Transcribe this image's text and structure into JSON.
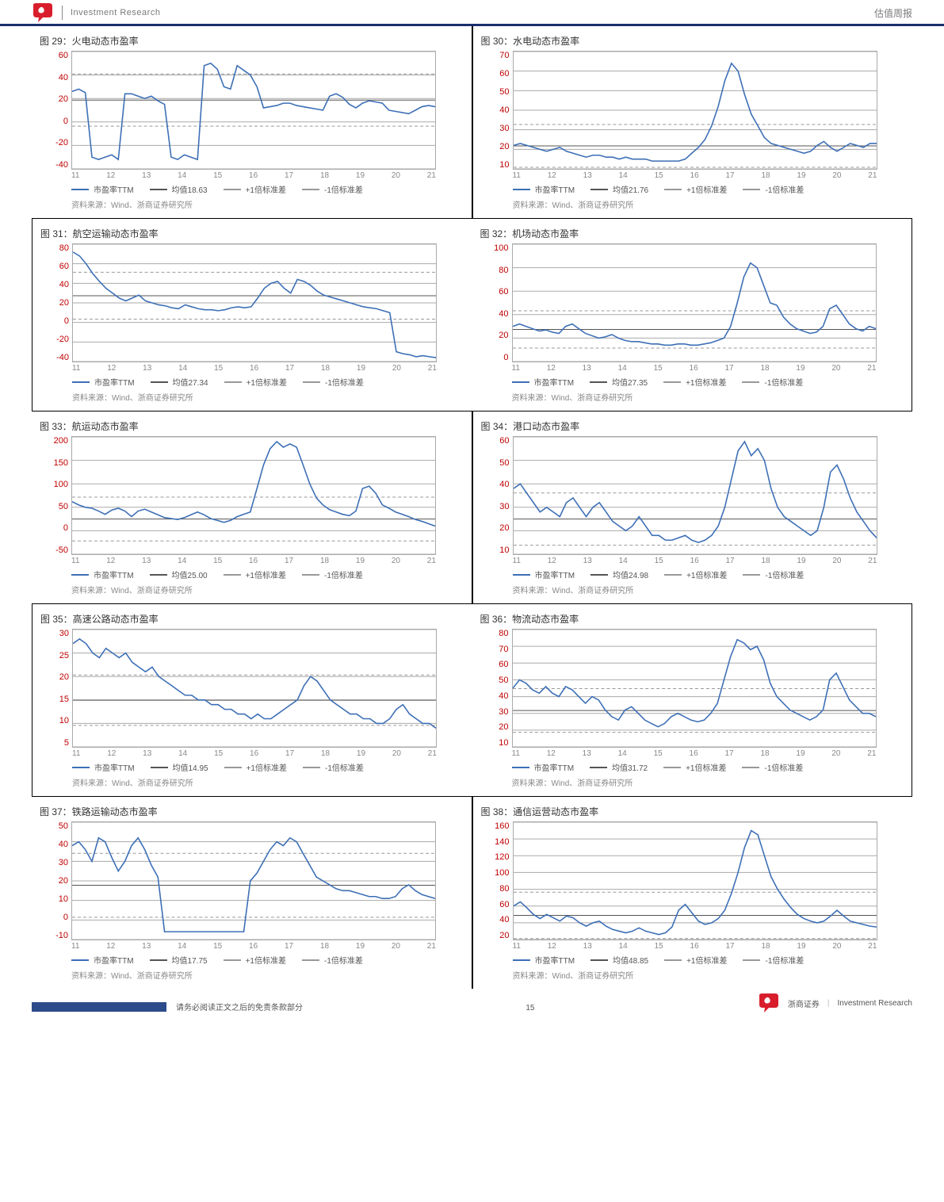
{
  "header": {
    "left_text": "Investment Research",
    "right_text": "估值周报"
  },
  "footer": {
    "left_text": "请务必阅读正文之后的免责条款部分",
    "page_num": "15",
    "right_brand": "浙商证券",
    "right_sub": "Investment Research"
  },
  "common": {
    "source_label": "资料来源：Wind、浙商证券研究所",
    "line_color": "#3d6fb6",
    "mean_label_prefix": "均值",
    "std_label_suffix_plus": "+1倍标准差",
    "std_label_suffix_minus": "-1倍标准差",
    "grid_color": "#aaaaaa",
    "line_width": 1.6,
    "grid_width": 1,
    "ylabel_color": "#c00000",
    "xlabel_color": "#888888",
    "x_years": [
      "11",
      "12",
      "13",
      "14",
      "15",
      "16",
      "17",
      "18",
      "19",
      "20",
      "21"
    ]
  },
  "charts": [
    {
      "idx": 29,
      "title": "图 29：火电动态市盈率",
      "y_ticks": [
        "60",
        "40",
        "20",
        "0",
        "-20",
        "-40"
      ],
      "ymin": -40,
      "ymax": 60,
      "mean": 18.63,
      "series": [
        26,
        28,
        25,
        -30,
        -32,
        -30,
        -28,
        -32,
        24,
        24,
        22,
        20,
        22,
        18,
        15,
        -30,
        -32,
        -28,
        -30,
        -32,
        48,
        50,
        45,
        30,
        28,
        48,
        44,
        40,
        30,
        12,
        13,
        14,
        16,
        16,
        14,
        13,
        12,
        11,
        10,
        22,
        24,
        21,
        15,
        12,
        16,
        18,
        17,
        16,
        10,
        9,
        8,
        7,
        10,
        13,
        14,
        13
      ]
    },
    {
      "idx": 30,
      "title": "图 30：水电动态市盈率",
      "y_ticks": [
        "70",
        "60",
        "50",
        "40",
        "30",
        "20",
        "10"
      ],
      "ymin": 10,
      "ymax": 70,
      "mean": 21.76,
      "series": [
        22,
        23,
        22,
        21,
        20,
        19,
        20,
        21,
        19,
        18,
        17,
        16,
        17,
        17,
        16,
        16,
        15,
        16,
        15,
        15,
        15,
        14,
        14,
        14,
        14,
        14,
        15,
        18,
        21,
        25,
        32,
        42,
        55,
        64,
        60,
        48,
        38,
        32,
        26,
        23,
        22,
        21,
        20,
        19,
        18,
        19,
        22,
        24,
        21,
        19,
        21,
        23,
        22,
        21,
        23,
        23
      ]
    },
    {
      "idx": 31,
      "title": "图 31：航空运输动态市盈率",
      "y_ticks": [
        "80",
        "60",
        "40",
        "20",
        "0",
        "-20",
        "-40"
      ],
      "ymin": -40,
      "ymax": 80,
      "mean": 27.34,
      "series": [
        72,
        68,
        60,
        50,
        42,
        35,
        30,
        25,
        22,
        25,
        28,
        22,
        20,
        18,
        17,
        15,
        14,
        18,
        16,
        14,
        13,
        13,
        12,
        13,
        15,
        16,
        15,
        16,
        25,
        35,
        40,
        42,
        35,
        30,
        44,
        42,
        38,
        32,
        28,
        26,
        24,
        22,
        20,
        18,
        16,
        15,
        14,
        12,
        10,
        -30,
        -32,
        -33,
        -35,
        -34,
        -35,
        -36
      ]
    },
    {
      "idx": 32,
      "title": "图 32：机场动态市盈率",
      "y_ticks": [
        "100",
        "80",
        "60",
        "40",
        "20",
        "0"
      ],
      "ymin": 0,
      "ymax": 100,
      "mean": 27.35,
      "series": [
        30,
        32,
        30,
        28,
        26,
        27,
        25,
        24,
        30,
        32,
        28,
        24,
        22,
        20,
        21,
        23,
        20,
        18,
        17,
        17,
        16,
        15,
        15,
        14,
        14,
        15,
        15,
        14,
        14,
        15,
        16,
        18,
        20,
        30,
        50,
        72,
        84,
        80,
        65,
        50,
        48,
        38,
        32,
        28,
        26,
        24,
        25,
        30,
        45,
        48,
        40,
        32,
        28,
        26,
        30,
        28
      ]
    },
    {
      "idx": 33,
      "title": "图 33：航运动态市盈率",
      "y_ticks": [
        "200",
        "150",
        "100",
        "50",
        "0",
        "-50"
      ],
      "ymin": -50,
      "ymax": 200,
      "mean": 25.0,
      "series": [
        62,
        55,
        50,
        48,
        42,
        35,
        44,
        48,
        42,
        30,
        42,
        46,
        40,
        34,
        28,
        26,
        24,
        28,
        34,
        40,
        34,
        26,
        22,
        18,
        22,
        30,
        35,
        40,
        90,
        140,
        175,
        190,
        178,
        185,
        178,
        140,
        100,
        70,
        55,
        45,
        40,
        35,
        32,
        42,
        90,
        95,
        80,
        55,
        48,
        40,
        35,
        30,
        24,
        20,
        15,
        10
      ]
    },
    {
      "idx": 34,
      "title": "图 34：港口动态市盈率",
      "y_ticks": [
        "60",
        "50",
        "40",
        "30",
        "20",
        "10"
      ],
      "ymin": 10,
      "ymax": 60,
      "mean": 24.98,
      "series": [
        38,
        40,
        36,
        32,
        28,
        30,
        28,
        26,
        32,
        34,
        30,
        26,
        30,
        32,
        28,
        24,
        22,
        20,
        22,
        26,
        22,
        18,
        18,
        16,
        16,
        17,
        18,
        16,
        15,
        16,
        18,
        22,
        30,
        42,
        54,
        58,
        52,
        55,
        50,
        38,
        30,
        26,
        24,
        22,
        20,
        18,
        20,
        30,
        45,
        48,
        42,
        34,
        28,
        24,
        20,
        17
      ]
    },
    {
      "idx": 35,
      "title": "图 35：高速公路动态市盈率",
      "y_ticks": [
        "30",
        "25",
        "20",
        "15",
        "10",
        "5"
      ],
      "ymin": 5,
      "ymax": 30,
      "mean": 14.95,
      "series": [
        27,
        28,
        27,
        25,
        24,
        26,
        25,
        24,
        25,
        23,
        22,
        21,
        22,
        20,
        19,
        18,
        17,
        16,
        16,
        15,
        15,
        14,
        14,
        13,
        13,
        12,
        12,
        11,
        12,
        11,
        11,
        12,
        13,
        14,
        15,
        18,
        20,
        19,
        17,
        15,
        14,
        13,
        12,
        12,
        11,
        11,
        10,
        10,
        11,
        13,
        14,
        12,
        11,
        10,
        10,
        9
      ]
    },
    {
      "idx": 36,
      "title": "图 36：物流动态市盈率",
      "y_ticks": [
        "80",
        "70",
        "60",
        "50",
        "40",
        "30",
        "20",
        "10"
      ],
      "ymin": 10,
      "ymax": 80,
      "mean": 31.72,
      "series": [
        45,
        50,
        48,
        44,
        42,
        46,
        42,
        40,
        46,
        44,
        40,
        36,
        40,
        38,
        32,
        28,
        26,
        32,
        34,
        30,
        26,
        24,
        22,
        24,
        28,
        30,
        28,
        26,
        25,
        26,
        30,
        36,
        50,
        64,
        74,
        72,
        68,
        70,
        62,
        48,
        40,
        36,
        32,
        30,
        28,
        26,
        28,
        32,
        50,
        54,
        46,
        38,
        34,
        30,
        30,
        28
      ]
    },
    {
      "idx": 37,
      "title": "图 37：铁路运输动态市盈率",
      "y_ticks": [
        "50",
        "40",
        "30",
        "20",
        "10",
        "0",
        "-10"
      ],
      "ymin": -10,
      "ymax": 50,
      "mean": 17.75,
      "series": [
        38,
        40,
        36,
        30,
        42,
        40,
        32,
        25,
        30,
        38,
        42,
        36,
        28,
        22,
        -6,
        -6,
        -6,
        -6,
        -6,
        -6,
        -6,
        -6,
        -6,
        -6,
        -6,
        -6,
        -6,
        20,
        24,
        30,
        36,
        40,
        38,
        42,
        40,
        34,
        28,
        22,
        20,
        18,
        16,
        15,
        15,
        14,
        13,
        12,
        12,
        11,
        11,
        12,
        16,
        18,
        15,
        13,
        12,
        11
      ]
    },
    {
      "idx": 38,
      "title": "图 38：通信运营动态市盈率",
      "y_ticks": [
        "160",
        "140",
        "120",
        "100",
        "80",
        "60",
        "40",
        "20"
      ],
      "ymin": 20,
      "ymax": 160,
      "mean": 48.85,
      "series": [
        60,
        65,
        58,
        50,
        45,
        50,
        46,
        42,
        48,
        46,
        40,
        36,
        40,
        42,
        36,
        32,
        30,
        28,
        30,
        34,
        30,
        28,
        26,
        28,
        35,
        55,
        62,
        52,
        42,
        38,
        40,
        45,
        55,
        75,
        100,
        130,
        150,
        145,
        120,
        95,
        80,
        68,
        58,
        50,
        45,
        42,
        40,
        42,
        48,
        55,
        48,
        42,
        40,
        38,
        36,
        35
      ]
    }
  ]
}
